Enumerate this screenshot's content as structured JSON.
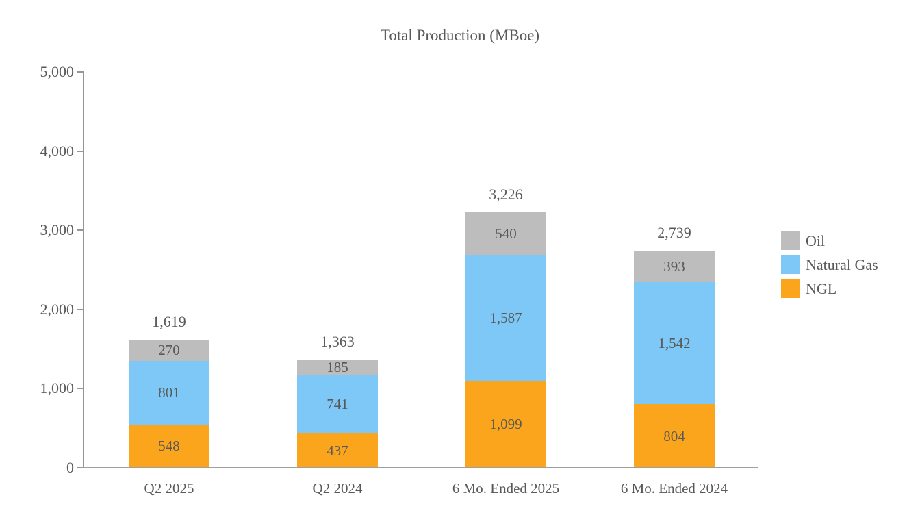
{
  "title": "Total Production (MBoe)",
  "colors": {
    "oil": "#bdbdbd",
    "natural_gas": "#7ec8f7",
    "ngl": "#faa51b",
    "axis": "#969696",
    "text": "#595959",
    "background": "#ffffff"
  },
  "y_axis": {
    "ticks": [
      {
        "label": "5,000",
        "value": 5000
      },
      {
        "label": "4,000",
        "value": 4000
      },
      {
        "label": "3,000",
        "value": 3000
      },
      {
        "label": "2,000",
        "value": 2000
      },
      {
        "label": "1,000",
        "value": 1000
      },
      {
        "label": "0",
        "value": 0
      }
    ]
  },
  "legend": [
    {
      "label": "Oil",
      "color": "#bdbdbd"
    },
    {
      "label": "Natural Gas",
      "color": "#7ec8f7"
    },
    {
      "label": "NGL",
      "color": "#faa51b"
    }
  ],
  "chart_data": {
    "type": "bar",
    "subtype": "stacked",
    "title": "Total Production (MBoe)",
    "xlabel": "",
    "ylabel": "",
    "ylim": [
      0,
      5000
    ],
    "grid": false,
    "legend_position": "right",
    "categories": [
      "Q2 2025",
      "Q2 2024",
      "6 Mo. Ended 2025",
      "6 Mo. Ended 2024"
    ],
    "series": [
      {
        "name": "NGL",
        "color": "#faa51b",
        "values": [
          548,
          437,
          1099,
          804
        ],
        "labels": [
          "548",
          "437",
          "1,099",
          "804"
        ]
      },
      {
        "name": "Natural Gas",
        "color": "#7ec8f7",
        "values": [
          801,
          741,
          1587,
          1542
        ],
        "labels": [
          "801",
          "741",
          "1,587",
          "1,542"
        ]
      },
      {
        "name": "Oil",
        "color": "#bdbdbd",
        "values": [
          270,
          185,
          540,
          393
        ],
        "labels": [
          "270",
          "185",
          "540",
          "393"
        ]
      }
    ],
    "totals": [
      1619,
      1363,
      3226,
      2739
    ],
    "totals_labels": [
      "1,619",
      "1,363",
      "3,226",
      "2,739"
    ]
  }
}
